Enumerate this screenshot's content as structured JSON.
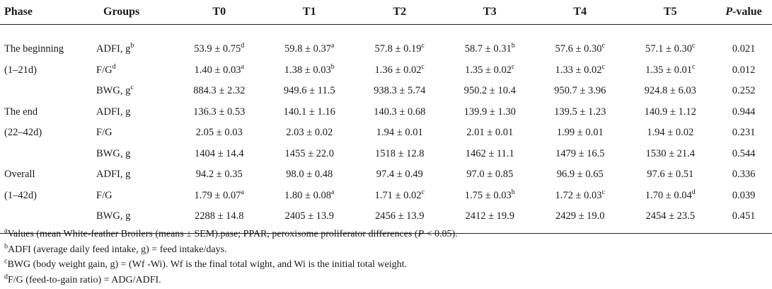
{
  "header": {
    "phase": "Phase",
    "groups": "Groups",
    "t0": "T0",
    "t1": "T1",
    "t2": "T2",
    "t3": "T3",
    "t4": "T4",
    "t5": "T5",
    "p_italic": "P",
    "p_rest": "-value"
  },
  "rows": [
    {
      "phase": "The beginning",
      "group": "ADFI, g",
      "group_sup": "b",
      "vals": [
        "53.9 ± 0.75",
        "59.8 ± 0.37",
        "57.8 ± 0.19",
        "58.7 ± 0.31",
        "57.6 ± 0.30",
        "57.1 ± 0.30"
      ],
      "sups": [
        "d",
        "a",
        "c",
        "b",
        "c",
        "c"
      ],
      "p": "0.021"
    },
    {
      "phase": "(1–21d)",
      "group": "F/G",
      "group_sup": "d",
      "vals": [
        "1.40 ± 0.03",
        "1.38 ± 0.03",
        "1.36 ± 0.02",
        "1.35 ± 0.02",
        "1.33 ± 0.02",
        "1.35 ± 0.01"
      ],
      "sups": [
        "a",
        "b",
        "c",
        "c",
        "c",
        "c"
      ],
      "p": "0.012"
    },
    {
      "phase": "",
      "group": "BWG, g",
      "group_sup": "c",
      "vals": [
        "884.3 ± 2.32",
        "949.6 ± 11.5",
        "938.3 ± 5.74",
        "950.2 ± 10.4",
        "950.7 ± 3.96",
        "924.8 ± 6.03"
      ],
      "sups": [
        "",
        "",
        "",
        "",
        "",
        ""
      ],
      "p": "0.252"
    },
    {
      "phase": "The end",
      "group": "ADFI, g",
      "group_sup": "",
      "vals": [
        "136.3 ± 0.53",
        "140.1 ± 1.16",
        "140.3 ± 0.68",
        "139.9 ± 1.30",
        "139.5 ± 1.23",
        "140.9 ± 1.12"
      ],
      "sups": [
        "",
        "",
        "",
        "",
        "",
        ""
      ],
      "p": "0.944"
    },
    {
      "phase": "(22–42d)",
      "group": "F/G",
      "group_sup": "",
      "vals": [
        "2.05 ± 0.03",
        "2.03 ± 0.02",
        "1.94 ± 0.01",
        "2.01 ± 0.01",
        "1.99 ± 0.01",
        "1.94 ± 0.02"
      ],
      "sups": [
        "",
        "",
        "",
        "",
        "",
        ""
      ],
      "p": "0.231"
    },
    {
      "phase": "",
      "group": "BWG, g",
      "group_sup": "",
      "vals": [
        "1404 ± 14.4",
        "1455 ± 22.0",
        "1518 ± 12.8",
        "1462 ± 11.1",
        "1479 ± 16.5",
        "1530 ± 21.4"
      ],
      "sups": [
        "",
        "",
        "",
        "",
        "",
        ""
      ],
      "p": "0.544"
    },
    {
      "phase": "Overall",
      "group": "ADFI, g",
      "group_sup": "",
      "vals": [
        "94.2 ± 0.35",
        "98.0 ± 0.48",
        "97.4 ± 0.49",
        "97.0 ± 0.85",
        "96.9 ± 0.65",
        "97.6 ± 0.51"
      ],
      "sups": [
        "",
        "",
        "",
        "",
        "",
        ""
      ],
      "p": "0.336"
    },
    {
      "phase": "(1–42d)",
      "group": "F/G",
      "group_sup": "",
      "vals": [
        "1.79 ± 0.07",
        "1.80 ± 0.08",
        "1.71 ± 0.02",
        "1.75 ± 0.03",
        "1.72 ± 0.03",
        "1.70 ± 0.04"
      ],
      "sups": [
        "a",
        "a",
        "c",
        "b",
        "c",
        "d"
      ],
      "p": "0.039"
    },
    {
      "phase": "",
      "group": "BWG, g",
      "group_sup": "",
      "vals": [
        "2288 ± 14.8",
        "2405 ± 13.9",
        "2456 ± 13.9",
        "2412 ± 19.9",
        "2429 ± 19.0",
        "2454 ± 23.5"
      ],
      "sups": [
        "",
        "",
        "",
        "",
        "",
        ""
      ],
      "p": "0.451"
    }
  ],
  "notes": {
    "a": {
      "sup": "a",
      "pre": "Values (mean White-feather Broilers (means ± SEM).pase; PPAR, peroxisome proliferator differences (",
      "p": "P",
      "post": " < 0.05)."
    },
    "b": {
      "sup": "b",
      "text": "ADFI (average daily feed intake, g) = feed intake/days."
    },
    "c": {
      "sup": "c",
      "text": "BWG (body weight gain, g) = (Wf -Wi). Wf is the final total wight, and Wi is the initial total weight."
    },
    "d": {
      "sup": "d",
      "text": "F/G (feed-to-gain ratio) = ADG/ADFI."
    }
  }
}
